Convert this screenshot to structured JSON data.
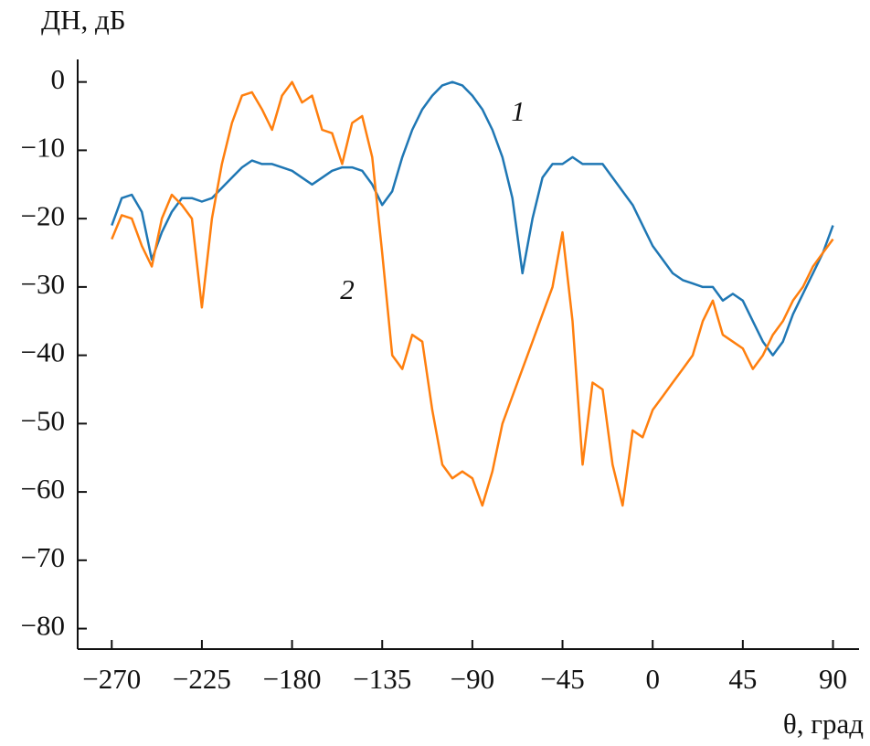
{
  "chart_data": {
    "type": "line",
    "y_label": "ДН, дБ",
    "x_label": "θ, град",
    "annotations": [
      "1",
      "2"
    ],
    "x": [
      -270,
      -265,
      -260,
      -255,
      -250,
      -245,
      -240,
      -235,
      -230,
      -225,
      -220,
      -215,
      -210,
      -205,
      -200,
      -195,
      -190,
      -185,
      -180,
      -175,
      -170,
      -165,
      -160,
      -155,
      -150,
      -145,
      -140,
      -135,
      -130,
      -125,
      -120,
      -115,
      -110,
      -105,
      -100,
      -95,
      -90,
      -85,
      -80,
      -75,
      -70,
      -65,
      -60,
      -55,
      -50,
      -45,
      -40,
      -35,
      -30,
      -25,
      -20,
      -15,
      -10,
      -5,
      0,
      5,
      10,
      15,
      20,
      25,
      30,
      35,
      40,
      45,
      50,
      55,
      60,
      65,
      70,
      75,
      80,
      85,
      90
    ],
    "series": [
      {
        "name": "1",
        "color": "#1f77b4",
        "values": [
          -21,
          -17,
          -16.5,
          -19,
          -26,
          -22,
          -19,
          -17,
          -17,
          -17.5,
          -17,
          -15.5,
          -14,
          -12.5,
          -11.5,
          -12,
          -12,
          -12.5,
          -13,
          -14,
          -15,
          -14,
          -13,
          -12.5,
          -12.5,
          -13,
          -15,
          -18,
          -16,
          -11,
          -7,
          -4,
          -2,
          -0.5,
          0,
          -0.5,
          -2,
          -4,
          -7,
          -11,
          -17,
          -28,
          -20,
          -14,
          -12,
          -12,
          -11,
          -12,
          -12,
          -12,
          -14,
          -16,
          -18,
          -21,
          -24,
          -26,
          -28,
          -29,
          -29.5,
          -30,
          -30,
          -32,
          -31,
          -32,
          -35,
          -38,
          -40,
          -38,
          -34,
          -31,
          -28,
          -25,
          -21
        ]
      },
      {
        "name": "2",
        "color": "#ff7f0e",
        "values": [
          -23,
          -19.5,
          -20,
          -24,
          -27,
          -20,
          -16.5,
          -18,
          -20,
          -33,
          -20,
          -12,
          -6,
          -2,
          -1.5,
          -4,
          -7,
          -2,
          0,
          -3,
          -2,
          -7,
          -7.5,
          -12,
          -6,
          -5,
          -11,
          -25,
          -40,
          -42,
          -37,
          -38,
          -48,
          -56,
          -58,
          -57,
          -58,
          -62,
          -57,
          -50,
          -46,
          -42,
          -38,
          -34,
          -30,
          -22,
          -35,
          -56,
          -44,
          -45,
          -56,
          -62,
          -51,
          -52,
          -48,
          -46,
          -44,
          -42,
          -40,
          -35,
          -32,
          -37,
          -38,
          -39,
          -42,
          -40,
          -37,
          -35,
          -32,
          -30,
          -27,
          -25,
          -23
        ]
      }
    ],
    "xlim": [
      -287,
      103
    ],
    "ylim": [
      -83,
      3.3
    ],
    "xticks": [
      {
        "value": -270,
        "label": "−270"
      },
      {
        "value": -225,
        "label": "−225"
      },
      {
        "value": -180,
        "label": "−180"
      },
      {
        "value": -135,
        "label": "−135"
      },
      {
        "value": -90,
        "label": "−90"
      },
      {
        "value": -45,
        "label": "−45"
      },
      0,
      45,
      90
    ],
    "yticks": [
      0,
      {
        "value": -10,
        "label": "−10"
      },
      {
        "value": -20,
        "label": "−20"
      },
      {
        "value": -30,
        "label": "−30"
      },
      {
        "value": -40,
        "label": "−40"
      },
      {
        "value": -50,
        "label": "−50"
      },
      {
        "value": -60,
        "label": "−60"
      },
      {
        "value": -70,
        "label": "−70"
      },
      {
        "value": -80,
        "label": "−80"
      }
    ]
  }
}
